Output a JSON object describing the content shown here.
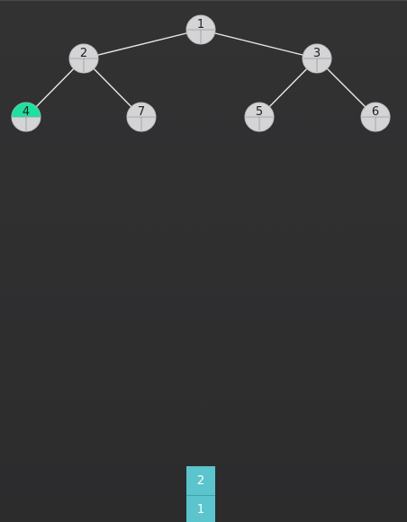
{
  "tree": {
    "nodes": [
      {
        "id": "1",
        "label": "1",
        "highlighted": false
      },
      {
        "id": "2",
        "label": "2",
        "highlighted": false
      },
      {
        "id": "3",
        "label": "3",
        "highlighted": false
      },
      {
        "id": "4",
        "label": "4",
        "highlighted": true
      },
      {
        "id": "7",
        "label": "7",
        "highlighted": false
      },
      {
        "id": "5",
        "label": "5",
        "highlighted": false
      },
      {
        "id": "6",
        "label": "6",
        "highlighted": false
      }
    ],
    "edges": [
      [
        "1",
        "2"
      ],
      [
        "1",
        "3"
      ],
      [
        "2",
        "4"
      ],
      [
        "2",
        "7"
      ],
      [
        "3",
        "5"
      ],
      [
        "3",
        "6"
      ]
    ]
  },
  "stack": {
    "items_top_to_bottom": [
      "2",
      "1"
    ]
  },
  "colors": {
    "background": "#2e2e2f",
    "node_fill": "#d4d4d6",
    "node_highlight": "#1fe0a0",
    "edge": "#e8e8e8",
    "stack_cell": "#5bc4cc"
  }
}
